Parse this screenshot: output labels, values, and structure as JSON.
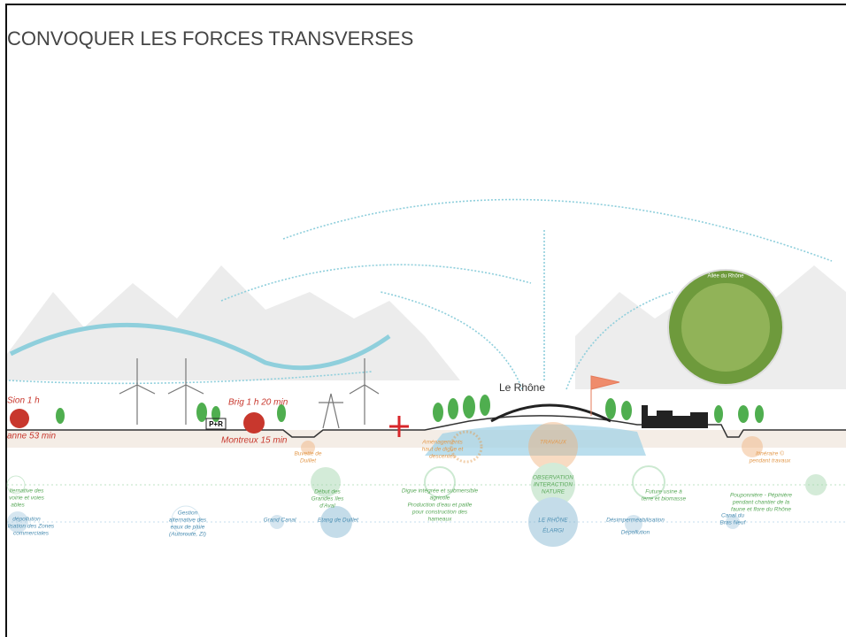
{
  "header": {
    "title": "CONVOQUER LES FORCES TRANSVERSES"
  },
  "section": {
    "river": "Le Rhône",
    "transport": {
      "train_top": "Sion 1 h",
      "train_bottom": "anne 53 min",
      "park": "P+R",
      "car_top": "Brig 1 h 20 min",
      "car_bottom": "Montreux 15 min"
    },
    "photo": "Allée du Rhône",
    "annotations": {
      "buvette": [
        "Buvette de",
        "Duillet"
      ],
      "amenagements": [
        "Aménagements",
        "haut de digue et",
        "descentes"
      ],
      "travaux": [
        "TRAVAUX"
      ],
      "itineraire": [
        "Itinéraire ©",
        "pendant travaux"
      ],
      "voirie": [
        "lternative des",
        "voirie et voies",
        "ables"
      ],
      "grandes_iles": [
        "Début des",
        "Grandes îles",
        "d'Aval"
      ],
      "digue": [
        "Digue intégrée et submersible",
        "agricole",
        "Production d'eau et paille",
        "pour construction des",
        "hameaux"
      ],
      "observation": [
        "OBSERVATION",
        "INTERACTION",
        "NATURE"
      ],
      "usine": [
        "Future usine à",
        "terre et biomasse"
      ],
      "pouponniere": [
        "Pouponnière - Pépinière",
        "pendant chantier de la",
        "faune et flore du Rhône"
      ],
      "depollution_zones": [
        "dépollution",
        "lisation des Zones",
        "commerciales"
      ],
      "gestion": [
        "Gestion",
        "alternative des",
        "eaux de pluie",
        "(Autoroute, ZI)"
      ],
      "grand_canal": [
        "Grand Canal"
      ],
      "etang": [
        "Etang de Duillet"
      ],
      "rhone_elargi": [
        "LE RHÔNE",
        "ÉLARGI"
      ],
      "desimper": [
        "Désimperméabilisation"
      ],
      "depollution": [
        "Dépollution"
      ],
      "canal": [
        "Canal du",
        "Bras Neuf"
      ]
    }
  }
}
